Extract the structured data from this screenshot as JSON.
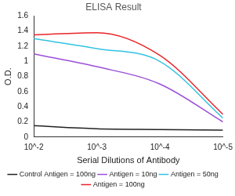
{
  "chart_data": {
    "type": "line",
    "title": "ELISA Result",
    "x_label": "Serial Dilutions of Antibody",
    "y_label": "O.D.",
    "x": [
      0.01,
      0.001,
      0.0001,
      1e-05
    ],
    "series": [
      {
        "name": "Control Antigen = 100ng",
        "color": "#222222",
        "values": [
          0.15,
          0.11,
          0.1,
          0.09
        ]
      },
      {
        "name": "Antigen = 10ng",
        "color": "#9b4fd8",
        "values": [
          1.1,
          0.93,
          0.7,
          0.2
        ]
      },
      {
        "name": "Antigen = 50ng",
        "color": "#33c3e0",
        "values": [
          1.3,
          1.17,
          1.0,
          0.25
        ]
      },
      {
        "name": "Antigen = 100ng",
        "color": "#e8262a",
        "values": [
          1.35,
          1.38,
          1.08,
          0.3
        ]
      }
    ],
    "log": "x",
    "xlim": [
      0.01,
      1e-05
    ],
    "xticks": [
      {
        "value": 0.01,
        "label": "10^-2"
      },
      {
        "value": 0.001,
        "label": "10^-3"
      },
      {
        "value": 0.0001,
        "label": "10^-4"
      },
      {
        "value": 1e-05,
        "label": "10^-5"
      }
    ],
    "ylim": [
      0,
      1.6
    ],
    "yticks": [
      0,
      0.2,
      0.4,
      0.6,
      0.8,
      1,
      1.2,
      1.4,
      1.6
    ],
    "grid": false,
    "legend": "bottom",
    "marker": "none"
  }
}
